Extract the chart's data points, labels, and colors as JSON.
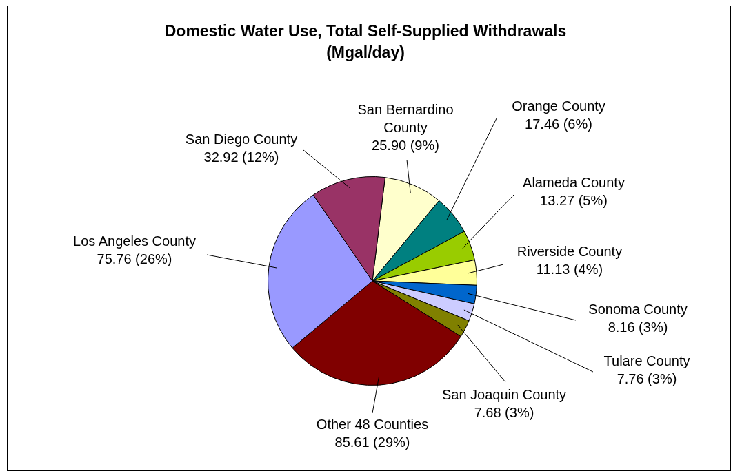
{
  "chart_data": {
    "type": "pie",
    "title": "Domestic Water Use, Total Self-Supplied Withdrawals (Mgal/day)",
    "categories": [
      "San Bernardino County",
      "Orange County",
      "Alameda County",
      "Riverside County",
      "Sonoma County",
      "Tulare County",
      "San Joaquin County",
      "Other 48 Counties",
      "Los Angeles County",
      "San Diego County"
    ],
    "values": [
      25.9,
      17.46,
      13.27,
      11.13,
      8.16,
      7.76,
      7.68,
      85.61,
      75.76,
      32.92
    ],
    "value_labels": [
      "25.90 (9%)",
      "17.46 (6%)",
      "13.27 (5%)",
      "11.13 (4%)",
      "8.16 (3%)",
      "7.76 (3%)",
      "7.68 (3%)",
      "85.61 (29%)",
      "75.76 (26%)",
      "32.92 (12%)"
    ],
    "colors": [
      "#ffffcc",
      "#008080",
      "#99cc00",
      "#ffff99",
      "#0066cc",
      "#ccccff",
      "#808000",
      "#800000",
      "#9999ff",
      "#993366"
    ],
    "legend": false
  }
}
